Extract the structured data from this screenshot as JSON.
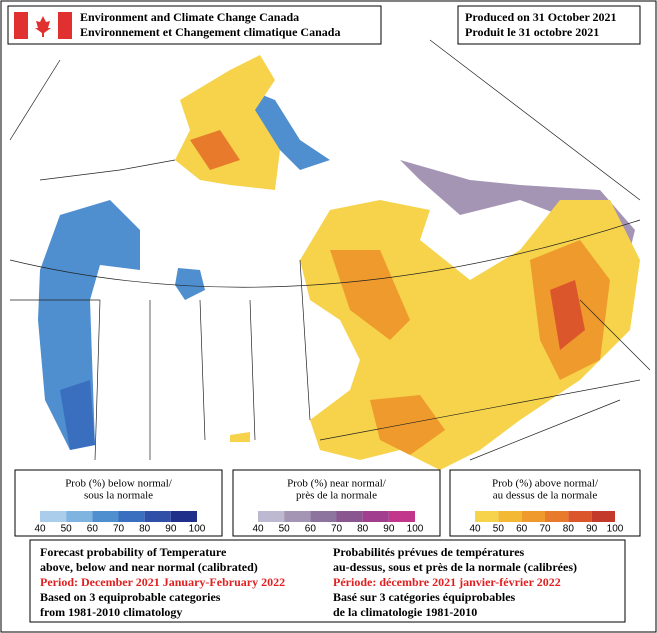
{
  "header": {
    "agency": [
      "Environment and Climate Change Canada",
      "Environnement et Changement climatique Canada"
    ],
    "produced": [
      "Produced on 31 October 2021",
      "Produit le 31 octobre 2021"
    ]
  },
  "legends": [
    {
      "title": [
        "Prob (%) below normal/",
        "sous la normale"
      ],
      "ticks": [
        40,
        50,
        60,
        70,
        80,
        90,
        100
      ],
      "colors": [
        "#a9cdea",
        "#7fb3e0",
        "#4f8fcf",
        "#3a6fbf",
        "#3050a8",
        "#1f2f8a"
      ]
    },
    {
      "title": [
        "Prob (%) near normal/",
        "près de la normale"
      ],
      "ticks": [
        40,
        50,
        60,
        70,
        80,
        90,
        100
      ],
      "colors": [
        "#bdb9d0",
        "#a595b5",
        "#8d749f",
        "#8a568f",
        "#a23e8e",
        "#c2368c"
      ]
    },
    {
      "title": [
        "Prob (%) above normal/",
        "au dessus de la normale"
      ],
      "ticks": [
        40,
        50,
        60,
        70,
        80,
        90,
        100
      ],
      "colors": [
        "#f6d34a",
        "#f3b834",
        "#ee9a2c",
        "#e77a2b",
        "#dc562b",
        "#c3392a"
      ]
    }
  ],
  "footer": {
    "english": [
      "Forecast probability of Temperature",
      "above, below and near normal (calibrated)",
      "Period: December 2021 January-February 2022",
      "Based on 3 equiprobable categories",
      "from 1981-2010 climatology"
    ],
    "french": [
      "Probabilités prévues de températures",
      "au-dessus, sous et près de la normale (calibrées)",
      "Période: décembre 2021 janvier-février 2022",
      "Basé sur 3 catégories équiprobables",
      "de la climatologie 1981-2010"
    ]
  }
}
